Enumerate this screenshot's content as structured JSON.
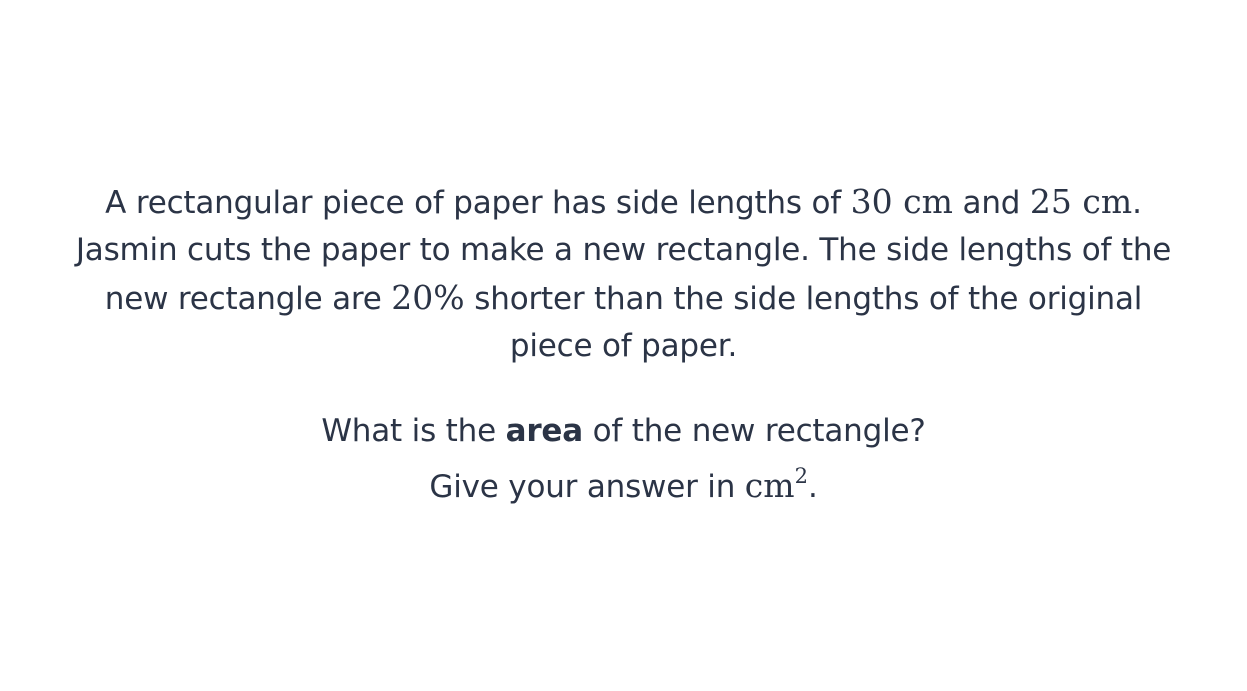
{
  "question": {
    "p1": {
      "l1_a": "A rectangular piece of paper has side lengths of ",
      "l1_m1": "30 cm",
      "l1_b": " and ",
      "l1_m2": "25 cm",
      "l1_c": ".",
      "l2": "Jasmin cuts the paper to make a new rectangle. The side lengths of the",
      "l3_a": "new rectangle are ",
      "l3_m": "20%",
      "l3_b": " shorter than the side lengths of the original",
      "l4": "piece of paper."
    },
    "p2": {
      "l1_a": "What is the ",
      "l1_bold": "area",
      "l1_b": " of the new rectangle?",
      "l2_a": "Give your answer in ",
      "l2_unit": "cm",
      "l2_exp": "2",
      "l2_b": "."
    }
  }
}
